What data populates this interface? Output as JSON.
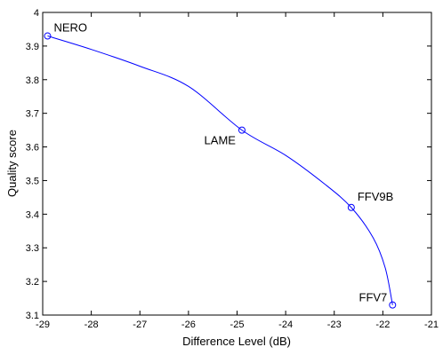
{
  "chart_data": {
    "type": "line",
    "xlabel": "Difference Level (dB)",
    "ylabel": "Quality score",
    "xlim": [
      -29,
      -21
    ],
    "ylim": [
      3.1,
      4.0
    ],
    "x_ticks": [
      -29,
      -28,
      -27,
      -26,
      -25,
      -24,
      -23,
      -22,
      -21
    ],
    "y_ticks": [
      3.1,
      3.2,
      3.3,
      3.4,
      3.5,
      3.6,
      3.7,
      3.8,
      3.9,
      4.0
    ],
    "x_tick_labels": [
      "-29",
      "-28",
      "-27",
      "-26",
      "-25",
      "-24",
      "-23",
      "-22",
      "-21"
    ],
    "y_tick_labels": [
      "3.1",
      "3.2",
      "3.3",
      "3.4",
      "3.5",
      "3.6",
      "3.7",
      "3.8",
      "3.9",
      "4"
    ],
    "grid": false,
    "line_color": "#0000ff",
    "points": [
      {
        "label": "NERO",
        "x": -28.9,
        "y": 3.93
      },
      {
        "label": "LAME",
        "x": -24.9,
        "y": 3.65
      },
      {
        "label": "FFV9B",
        "x": -22.65,
        "y": 3.42
      },
      {
        "label": "FFV7",
        "x": -21.8,
        "y": 3.13
      }
    ],
    "curve": [
      [
        -28.9,
        3.93
      ],
      [
        -28.0,
        3.89
      ],
      [
        -27.0,
        3.84
      ],
      [
        -26.0,
        3.78
      ],
      [
        -24.9,
        3.65
      ],
      [
        -24.0,
        3.575
      ],
      [
        -23.2,
        3.49
      ],
      [
        -22.65,
        3.42
      ],
      [
        -22.2,
        3.33
      ],
      [
        -21.95,
        3.24
      ],
      [
        -21.8,
        3.13
      ]
    ]
  }
}
